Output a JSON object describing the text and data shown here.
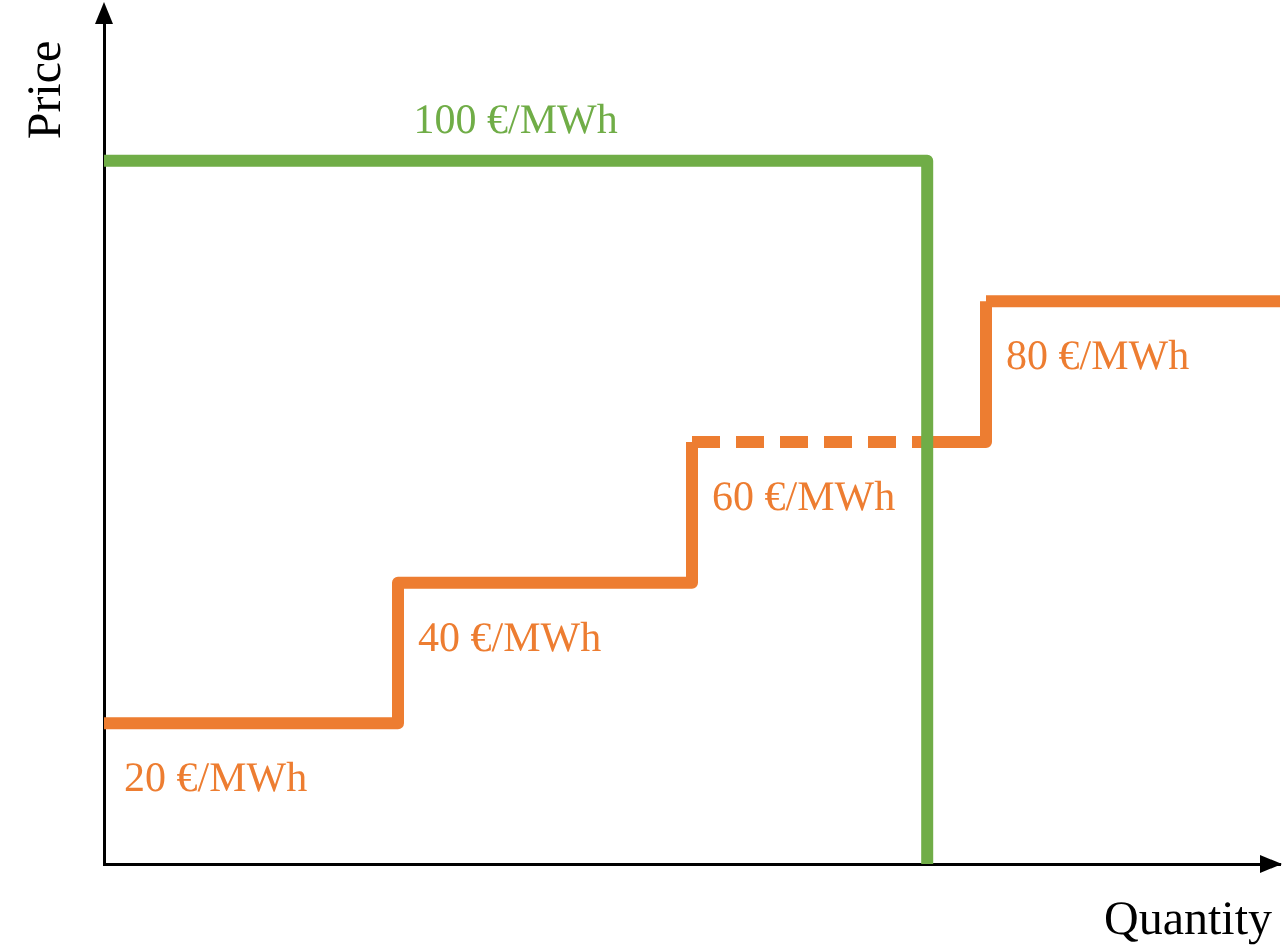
{
  "chart_data": {
    "type": "step",
    "xlabel": "Quantity",
    "ylabel": "Price",
    "legend": false,
    "grid": false,
    "marker": "none",
    "categories": [
      null,
      null,
      null,
      null,
      null,
      null,
      null,
      null,
      null,
      null,
      null,
      null,
      null,
      null,
      null,
      null,
      null,
      null,
      null,
      null,
      null
    ],
    "series": [
      {
        "color": "#70ad47",
        "values": [
          100,
          100,
          100,
          100,
          100,
          100,
          100,
          100,
          100,
          100,
          100,
          100,
          100,
          100,
          0,
          null,
          null,
          null,
          null,
          null,
          null
        ],
        "value_labels": [
          null,
          null,
          null,
          null,
          null,
          null,
          null,
          "100 €/MWh",
          null,
          null,
          null,
          null,
          null,
          null,
          null,
          null,
          null,
          null,
          null,
          null,
          null
        ],
        "line_style": "solid"
      },
      {
        "color": "#ed7d31",
        "values": [
          20,
          20,
          20,
          20,
          20,
          40,
          40,
          40,
          40,
          40,
          60,
          null,
          null,
          null,
          null,
          null,
          null,
          null,
          null,
          null,
          null
        ],
        "value_labels": [
          "20 €/MWh",
          null,
          null,
          null,
          null,
          "40 €/MWh",
          null,
          null,
          null,
          null,
          null,
          null,
          null,
          null,
          null,
          null,
          null,
          null,
          null,
          null,
          null
        ],
        "line_style": "solid"
      },
      {
        "color": "#ed7d31",
        "values": [
          null,
          null,
          null,
          null,
          null,
          null,
          null,
          null,
          null,
          null,
          60,
          60,
          60,
          60,
          60,
          80,
          null,
          null,
          null,
          null,
          null
        ],
        "value_labels": [
          null,
          null,
          null,
          null,
          null,
          null,
          null,
          null,
          null,
          null,
          "60 €/MWh",
          null,
          null,
          null,
          null,
          null,
          null,
          null,
          null,
          null,
          null
        ],
        "line_style": "dashed"
      },
      {
        "color": "#ed7d31",
        "values": [
          null,
          null,
          null,
          null,
          null,
          null,
          null,
          null,
          null,
          null,
          null,
          null,
          null,
          null,
          null,
          80,
          80,
          80,
          80,
          80,
          80
        ],
        "value_labels": [
          null,
          null,
          null,
          null,
          null,
          null,
          null,
          null,
          null,
          null,
          null,
          null,
          null,
          null,
          null,
          "80 €/MWh",
          null,
          null,
          null,
          null,
          null
        ],
        "line_style": "solid"
      }
    ]
  }
}
